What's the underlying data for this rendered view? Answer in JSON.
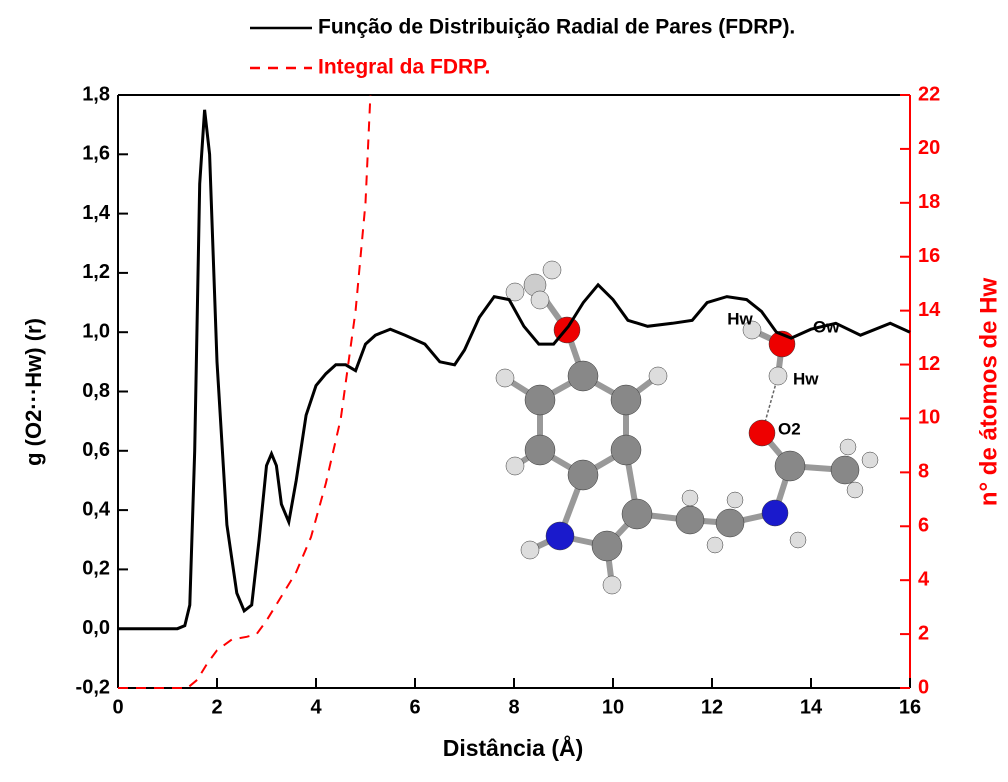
{
  "chart_data": {
    "type": "line",
    "xlabel": "Distância (Å)",
    "ylabel": "g (O2···Hw) (r)",
    "y2label": "n° de átomos de Hw",
    "xlim": [
      0,
      16
    ],
    "xticks": [
      0,
      2,
      4,
      6,
      8,
      10,
      12,
      14,
      16
    ],
    "ylim": [
      -0.2,
      1.8
    ],
    "yticks": [
      {
        "value": -0.2,
        "label": "-0,2"
      },
      {
        "value": 0,
        "label": "0,0"
      },
      {
        "value": 0.2,
        "label": "0,2"
      },
      {
        "value": 0.4,
        "label": "0,4"
      },
      {
        "value": 0.6,
        "label": "0,6"
      },
      {
        "value": 0.8,
        "label": "0,8"
      },
      {
        "value": 1.0,
        "label": "1,0"
      },
      {
        "value": 1.2,
        "label": "1,2"
      },
      {
        "value": 1.4,
        "label": "1,4"
      },
      {
        "value": 1.6,
        "label": "1,6"
      },
      {
        "value": 1.8,
        "label": "1,8"
      }
    ],
    "y2lim": [
      0,
      22
    ],
    "y2ticks": [
      0,
      2,
      4,
      6,
      8,
      10,
      12,
      14,
      16,
      18,
      20,
      22
    ],
    "series": [
      {
        "name": "Função de Distribuição Radial de Pares (FDRP).",
        "color": "#000000",
        "dash": false,
        "x": [
          0,
          1.2,
          1.35,
          1.45,
          1.55,
          1.65,
          1.75,
          1.85,
          2.0,
          2.2,
          2.4,
          2.55,
          2.7,
          2.85,
          3.0,
          3.1,
          3.2,
          3.3,
          3.45,
          3.6,
          3.8,
          4.0,
          4.2,
          4.4,
          4.6,
          4.8,
          5.0,
          5.2,
          5.5,
          5.8,
          6.2,
          6.5,
          6.8,
          7.0,
          7.3,
          7.6,
          7.9,
          8.2,
          8.5,
          8.8,
          9.1,
          9.4,
          9.7,
          10.0,
          10.3,
          10.7,
          11.2,
          11.6,
          11.9,
          12.3,
          12.7,
          13.0,
          13.3,
          13.6,
          14.0,
          14.5,
          15.0,
          15.6,
          16
        ],
        "values": [
          0,
          0,
          0.01,
          0.08,
          0.6,
          1.5,
          1.75,
          1.6,
          0.9,
          0.35,
          0.12,
          0.06,
          0.08,
          0.3,
          0.55,
          0.59,
          0.55,
          0.42,
          0.36,
          0.5,
          0.72,
          0.82,
          0.86,
          0.89,
          0.89,
          0.87,
          0.96,
          0.99,
          1.01,
          0.99,
          0.96,
          0.9,
          0.89,
          0.94,
          1.05,
          1.12,
          1.11,
          1.02,
          0.96,
          0.96,
          1.02,
          1.1,
          1.16,
          1.11,
          1.04,
          1.02,
          1.03,
          1.04,
          1.1,
          1.12,
          1.11,
          1.07,
          1.0,
          0.98,
          1.01,
          1.03,
          0.99,
          1.03,
          1.0
        ]
      },
      {
        "name": "Integral da FDRP.",
        "color": "#ff0000",
        "dash": true,
        "axis": "y2",
        "x": [
          0,
          1.0,
          1.4,
          1.6,
          1.8,
          2.0,
          2.3,
          2.6,
          2.8,
          3.0,
          3.3,
          3.6,
          3.9,
          4.2,
          4.5,
          4.8,
          5.0,
          5.1
        ],
        "values": [
          0,
          0,
          0,
          0.3,
          0.9,
          1.4,
          1.8,
          1.9,
          2.0,
          2.5,
          3.4,
          4.3,
          5.6,
          7.6,
          10,
          14,
          18,
          22
        ]
      }
    ],
    "annotations": [
      "Hw",
      "Ow",
      "Hw",
      "O2"
    ]
  }
}
